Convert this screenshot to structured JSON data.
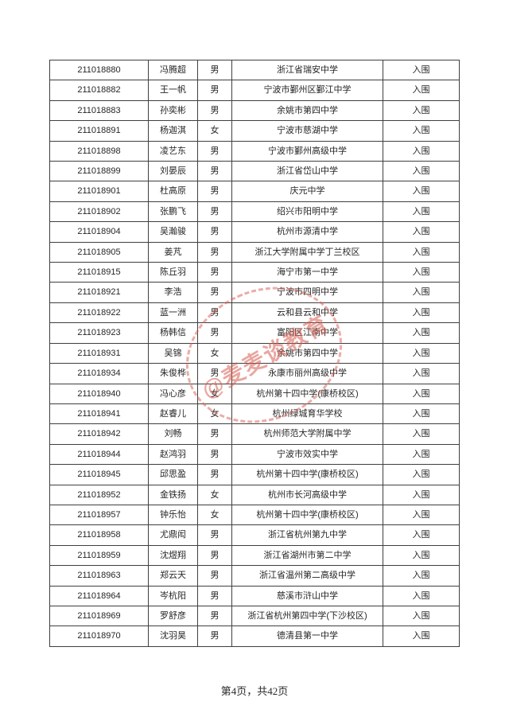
{
  "table": {
    "status_note": "入围",
    "rows": [
      {
        "exam_id": "211018880",
        "name": "冯腾超",
        "gender": "男",
        "school": "浙江省瑞安中学",
        "result": "入围"
      },
      {
        "exam_id": "211018882",
        "name": "王一帆",
        "gender": "男",
        "school": "宁波市鄞州区鄞江中学",
        "result": "入围"
      },
      {
        "exam_id": "211018883",
        "name": "孙奕彬",
        "gender": "男",
        "school": "余姚市第四中学",
        "result": "入围"
      },
      {
        "exam_id": "211018891",
        "name": "杨迦淇",
        "gender": "女",
        "school": "宁波市慈湖中学",
        "result": "入围"
      },
      {
        "exam_id": "211018898",
        "name": "凌艺东",
        "gender": "男",
        "school": "宁波市鄞州高级中学",
        "result": "入围"
      },
      {
        "exam_id": "211018899",
        "name": "刘晏辰",
        "gender": "男",
        "school": "浙江省岱山中学",
        "result": "入围"
      },
      {
        "exam_id": "211018901",
        "name": "杜高原",
        "gender": "男",
        "school": "庆元中学",
        "result": "入围"
      },
      {
        "exam_id": "211018902",
        "name": "张鹏飞",
        "gender": "男",
        "school": "绍兴市阳明中学",
        "result": "入围"
      },
      {
        "exam_id": "211018904",
        "name": "吴瀚骏",
        "gender": "男",
        "school": "杭州市源清中学",
        "result": "入围"
      },
      {
        "exam_id": "211018905",
        "name": "姜芃",
        "gender": "男",
        "school": "浙江大学附属中学丁兰校区",
        "result": "入围"
      },
      {
        "exam_id": "211018915",
        "name": "陈丘羽",
        "gender": "男",
        "school": "海宁市第一中学",
        "result": "入围"
      },
      {
        "exam_id": "211018921",
        "name": "李浩",
        "gender": "男",
        "school": "宁波市四明中学",
        "result": "入围"
      },
      {
        "exam_id": "211018922",
        "name": "蓝一洲",
        "gender": "男",
        "school": "云和县云和中学",
        "result": "入围"
      },
      {
        "exam_id": "211018923",
        "name": "杨韩信",
        "gender": "男",
        "school": "富阳区江南中学",
        "result": "入围"
      },
      {
        "exam_id": "211018931",
        "name": "吴锦",
        "gender": "女",
        "school": "余姚市第四中学",
        "result": "入围"
      },
      {
        "exam_id": "211018934",
        "name": "朱俊桦",
        "gender": "男",
        "school": "永康市丽州高级中学",
        "result": "入围"
      },
      {
        "exam_id": "211018940",
        "name": "冯心彦",
        "gender": "女",
        "school": "杭州第十四中学(康桥校区)",
        "result": "入围"
      },
      {
        "exam_id": "211018941",
        "name": "赵睿儿",
        "gender": "女",
        "school": "杭州绿城育华学校",
        "result": "入围"
      },
      {
        "exam_id": "211018942",
        "name": "刘畅",
        "gender": "男",
        "school": "杭州师范大学附属中学",
        "result": "入围"
      },
      {
        "exam_id": "211018944",
        "name": "赵鸿羽",
        "gender": "男",
        "school": "宁波市效实中学",
        "result": "入围"
      },
      {
        "exam_id": "211018945",
        "name": "邱思盈",
        "gender": "男",
        "school": "杭州第十四中学(康桥校区)",
        "result": "入围"
      },
      {
        "exam_id": "211018952",
        "name": "金铁扬",
        "gender": "女",
        "school": "杭州市长河高级中学",
        "result": "入围"
      },
      {
        "exam_id": "211018957",
        "name": "钟乐怡",
        "gender": "女",
        "school": "杭州第十四中学(康桥校区)",
        "result": "入围"
      },
      {
        "exam_id": "211018958",
        "name": "尤鼎闳",
        "gender": "男",
        "school": "浙江省杭州第九中学",
        "result": "入围"
      },
      {
        "exam_id": "211018959",
        "name": "沈煜翔",
        "gender": "男",
        "school": "浙江省湖州市第二中学",
        "result": "入围"
      },
      {
        "exam_id": "211018963",
        "name": "郑云天",
        "gender": "男",
        "school": "浙江省温州第二高级中学",
        "result": "入围"
      },
      {
        "exam_id": "211018964",
        "name": "岑杭阳",
        "gender": "男",
        "school": "慈溪市浒山中学",
        "result": "入围"
      },
      {
        "exam_id": "211018969",
        "name": "罗舒彦",
        "gender": "男",
        "school": "浙江省杭州第四中学(下沙校区)",
        "result": "入围"
      },
      {
        "exam_id": "211018970",
        "name": "沈羽昊",
        "gender": "男",
        "school": "德清县第一中学",
        "result": "入围"
      }
    ]
  },
  "watermark": {
    "text": "@麦麦谈教育",
    "color": "#d65c50"
  },
  "footer": {
    "page_indicator": "第4页，共42页"
  }
}
